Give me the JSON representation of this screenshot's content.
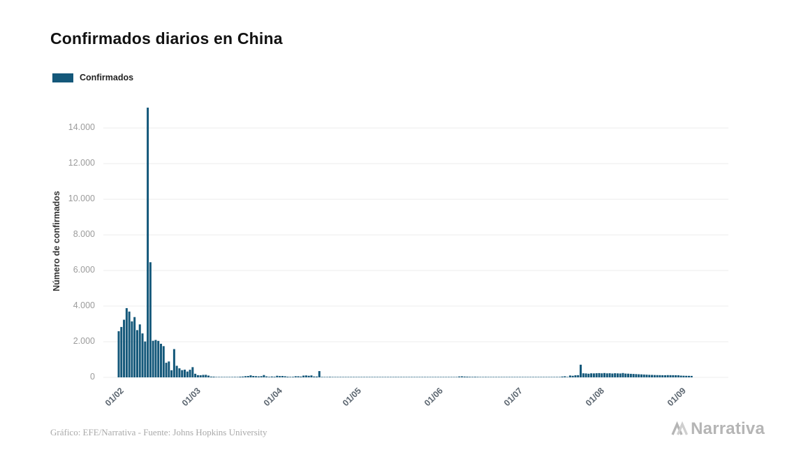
{
  "page": {
    "title": "Confirmados diarios en China",
    "footer": "Gráfico: EFE/Narrativa - Fuente: Johns Hopkins University",
    "brand": "Narrativa"
  },
  "legend": {
    "label": "Confirmados"
  },
  "chart_data": {
    "type": "bar",
    "title": "Confirmados diarios en China",
    "xlabel": "",
    "ylabel": "Número de confirmados",
    "series_name": "Confirmados",
    "bar_color": "#14587a",
    "grid": true,
    "legend_position": "top-left",
    "ylim": [
      0,
      15300
    ],
    "start_date": "01/02/2020",
    "frequency": "daily",
    "yticks": {
      "values": [
        0,
        2000,
        4000,
        6000,
        8000,
        10000,
        12000,
        14000
      ],
      "labels": [
        "0",
        "2.000",
        "4.000",
        "6.000",
        "8.000",
        "10.000",
        "12.000",
        "14.000"
      ]
    },
    "xticks": {
      "labels": [
        "01/02",
        "01/03",
        "01/04",
        "01/05",
        "01/06",
        "01/07",
        "01/08",
        "01/09"
      ],
      "day_index": [
        0,
        29,
        60,
        90,
        121,
        151,
        182,
        213
      ]
    },
    "values": [
      2590,
      2829,
      3235,
      3887,
      3694,
      3143,
      3385,
      2652,
      2973,
      2467,
      2015,
      15141,
      6463,
      2055,
      2100,
      2048,
      1886,
      1752,
      820,
      892,
      399,
      1587,
      650,
      508,
      406,
      433,
      327,
      427,
      573,
      202,
      125,
      119,
      139,
      143,
      99,
      44,
      40,
      19,
      24,
      15,
      20,
      11,
      13,
      21,
      27,
      13,
      39,
      46,
      67,
      78,
      113,
      78,
      67,
      54,
      67,
      129,
      54,
      31,
      48,
      36,
      90,
      73,
      78,
      62,
      39,
      30,
      32,
      63,
      61,
      46,
      99,
      108,
      89,
      108,
      49,
      46,
      352,
      27,
      16,
      12,
      30,
      22,
      6,
      3,
      11,
      6,
      22,
      3,
      4,
      12,
      1,
      2,
      3,
      1,
      2,
      2,
      1,
      14,
      1,
      12,
      17,
      7,
      3,
      3,
      8,
      25,
      5,
      7,
      6,
      5,
      4,
      2,
      3,
      11,
      7,
      3,
      1,
      2,
      4,
      3,
      2,
      5,
      3,
      1,
      11,
      5,
      4,
      5,
      6,
      49,
      57,
      44,
      40,
      32,
      28,
      34,
      27,
      22,
      18,
      26,
      12,
      19,
      3,
      5,
      3,
      2,
      7,
      14,
      12,
      9,
      5,
      3,
      5,
      8,
      4,
      2,
      9,
      8,
      7,
      9,
      4,
      8,
      10,
      14,
      10,
      6,
      9,
      22,
      46,
      61,
      22,
      105,
      89,
      116,
      123,
      711,
      228,
      221,
      205,
      227,
      223,
      232,
      239,
      227,
      243,
      225,
      232,
      217,
      231,
      224,
      219,
      243,
      213,
      208,
      199,
      192,
      183,
      174,
      168,
      159,
      151,
      142,
      137,
      131,
      128,
      125,
      121,
      119,
      126,
      124,
      122,
      119,
      117,
      98,
      92,
      88,
      85,
      82
    ]
  }
}
